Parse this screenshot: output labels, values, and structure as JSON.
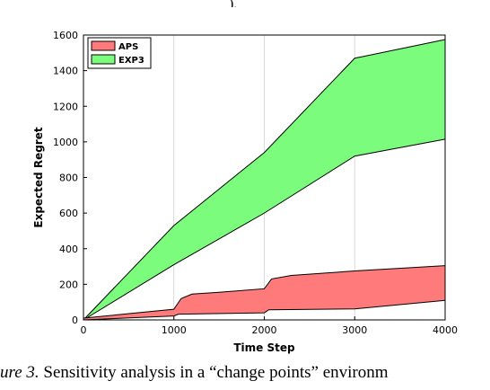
{
  "top_fragment": "),",
  "chart_data": {
    "type": "area",
    "xlabel": "Time Step",
    "ylabel": "Expected Regret",
    "xlim": [
      0,
      4000
    ],
    "ylim": [
      0,
      1600
    ],
    "xticks": [
      0,
      1000,
      2000,
      3000,
      4000
    ],
    "yticks": [
      0,
      200,
      400,
      600,
      800,
      1000,
      1200,
      1400,
      1600
    ],
    "grid": "vertical",
    "legend_position": "top-left",
    "series": [
      {
        "name": "EXP3",
        "color": "#7cfc7c",
        "band": true,
        "upper": [
          [
            0,
            0
          ],
          [
            1000,
            530
          ],
          [
            2000,
            940
          ],
          [
            3000,
            1470
          ],
          [
            3100,
            1480
          ],
          [
            4000,
            1575
          ]
        ],
        "lower": [
          [
            0,
            0
          ],
          [
            1000,
            310
          ],
          [
            2000,
            600
          ],
          [
            3000,
            920
          ],
          [
            4000,
            1015
          ]
        ]
      },
      {
        "name": "APS",
        "color": "#ff7b7b",
        "band": true,
        "upper": [
          [
            0,
            10
          ],
          [
            1000,
            60
          ],
          [
            1080,
            120
          ],
          [
            1200,
            145
          ],
          [
            1500,
            155
          ],
          [
            2000,
            175
          ],
          [
            2080,
            230
          ],
          [
            2300,
            250
          ],
          [
            3000,
            275
          ],
          [
            4000,
            305
          ]
        ],
        "lower": [
          [
            0,
            0
          ],
          [
            1000,
            22
          ],
          [
            1050,
            32
          ],
          [
            2000,
            40
          ],
          [
            2050,
            57
          ],
          [
            3000,
            62
          ],
          [
            4000,
            110
          ]
        ]
      }
    ]
  },
  "caption": {
    "figure_label": "ure 3.",
    "text": " Sensitivity analysis in a “change points” environm"
  }
}
